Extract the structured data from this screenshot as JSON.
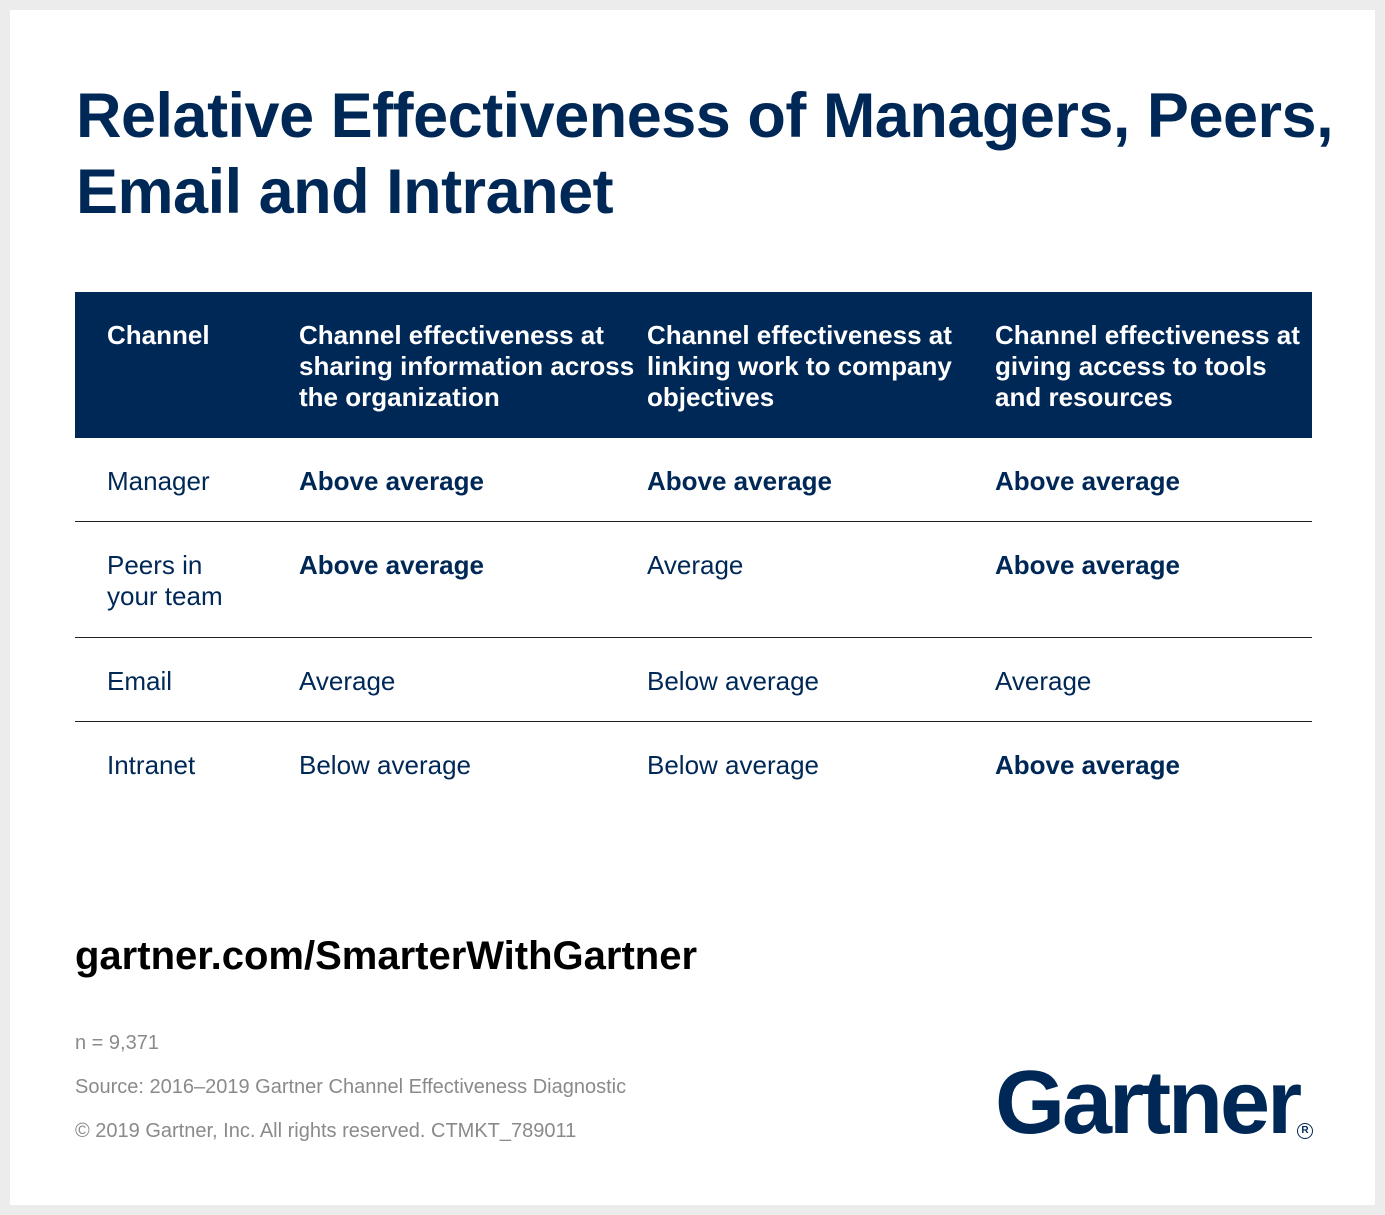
{
  "title": "Relative Effectiveness of Managers, Peers, Email and Intranet",
  "table": {
    "headers": [
      "Channel",
      "Channel effectiveness at sharing information across the organization",
      "Channel effectiveness at linking work to company objectives",
      "Channel effectiveness at giving access to tools and resources"
    ],
    "rows": [
      [
        "Manager",
        "Above average",
        "Above average",
        "Above average"
      ],
      [
        "Peers in your team",
        "Above average",
        "Average",
        "Above average"
      ],
      [
        "Email",
        "Average",
        "Below average",
        "Average"
      ],
      [
        "Intranet",
        "Below average",
        "Below average",
        "Above average"
      ]
    ]
  },
  "url": "gartner.com/SmarterWithGartner",
  "footnotes": {
    "n": "n = 9,371",
    "source": "Source: 2016–2019 Gartner Channel Effectiveness Diagnostic",
    "copyright": "© 2019 Gartner, Inc. All rights reserved. CTMKT_789011"
  },
  "logo": {
    "text": "Gartner",
    "registered": "R"
  },
  "colors": {
    "navy": "#002856",
    "background": "#ececec",
    "card": "#ffffff",
    "footnote": "#8a8a8a"
  }
}
